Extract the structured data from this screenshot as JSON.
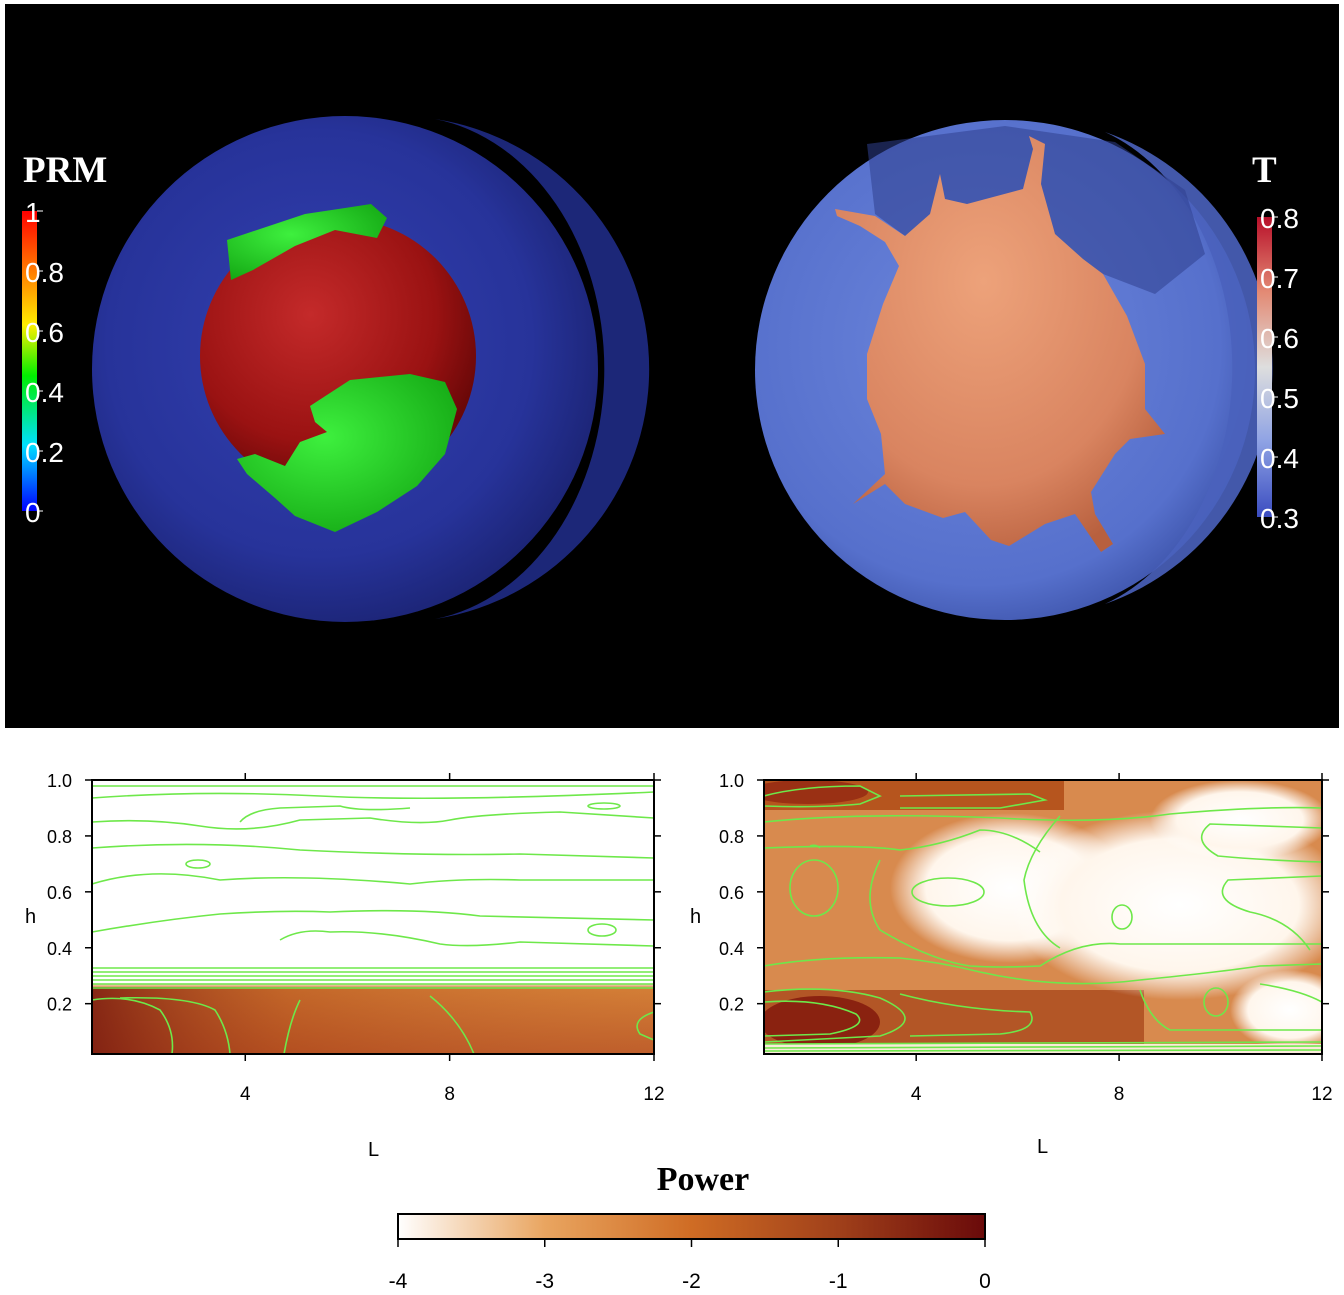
{
  "top": {
    "left_colorbar": {
      "title": "PRM",
      "ticks": [
        "1",
        "0.8",
        "0.6",
        "0.4",
        "0.2",
        "0"
      ],
      "tick_values": [
        1,
        0.8,
        0.6,
        0.4,
        0.2,
        0
      ],
      "colors": [
        "#ff0000",
        "#ffff00",
        "#00ff00",
        "#00ffff",
        "#0000ff"
      ]
    },
    "right_colorbar": {
      "title": "T",
      "ticks": [
        "0.8",
        "0.7",
        "0.6",
        "0.5",
        "0.4",
        "0.3"
      ],
      "tick_values": [
        0.8,
        0.7,
        0.6,
        0.5,
        0.4,
        0.3
      ],
      "colors": [
        "#c0142a",
        "#e8947c",
        "#dddddd",
        "#8fa0e0",
        "#3b4cc0"
      ]
    },
    "left_sphere": {
      "shell_color": "#2b3a9e",
      "core_color": "#b01818",
      "patch_color": "#22dd22"
    },
    "right_sphere": {
      "shell_color": "#5a74cf",
      "plume_color": "#e0906a"
    }
  },
  "chart_data": [
    {
      "type": "heatmap",
      "name": "left",
      "xlabel": "L",
      "ylabel": "h",
      "xlim": [
        1,
        12
      ],
      "ylim": [
        0.02,
        1.0
      ],
      "xticks": [
        "4",
        "8",
        "12"
      ],
      "xtick_values": [
        4,
        8,
        12
      ],
      "yticks": [
        "1.0",
        "0.8",
        "0.6",
        "0.4",
        "0.2"
      ],
      "ytick_values": [
        1.0,
        0.8,
        0.6,
        0.4,
        0.2
      ],
      "contour_color": "#6ee84a"
    },
    {
      "type": "heatmap",
      "name": "right",
      "xlabel": "L",
      "ylabel": "h",
      "xlim": [
        1,
        12
      ],
      "ylim": [
        0.02,
        1.0
      ],
      "xticks": [
        "4",
        "8",
        "12"
      ],
      "xtick_values": [
        4,
        8,
        12
      ],
      "yticks": [
        "1.0",
        "0.8",
        "0.6",
        "0.4",
        "0.2"
      ],
      "ytick_values": [
        1.0,
        0.8,
        0.6,
        0.4,
        0.2
      ],
      "contour_color": "#6ee84a"
    }
  ],
  "colorbar": {
    "title": "Power",
    "ticks": [
      "-4",
      "-3",
      "-2",
      "-1",
      "0"
    ],
    "tick_values": [
      -4,
      -3,
      -2,
      -1,
      0
    ],
    "colors": [
      "#ffffff",
      "#e9a35f",
      "#cc6a22",
      "#9c3a15",
      "#6e0a0a"
    ]
  }
}
